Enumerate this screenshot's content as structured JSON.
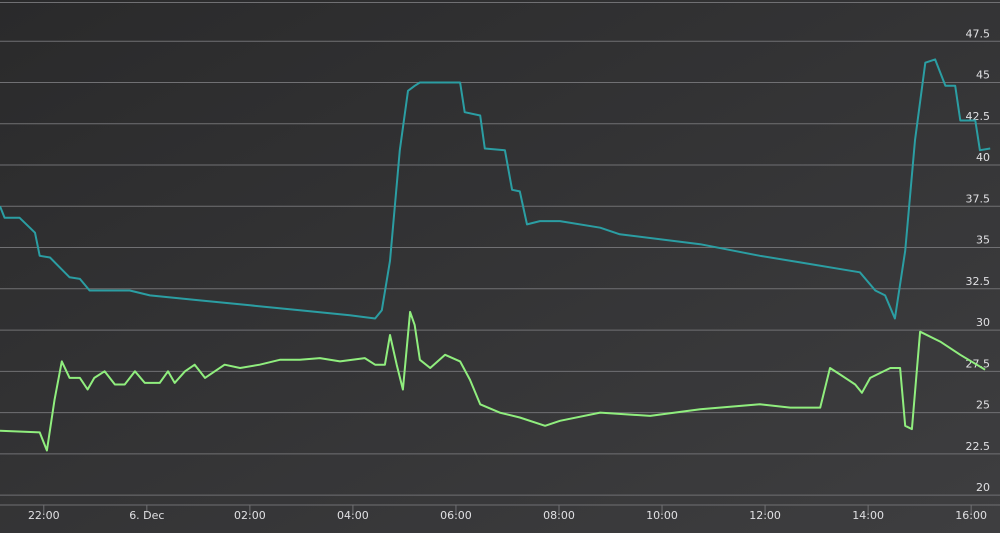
{
  "chart_data": {
    "type": "line",
    "xlim": [
      21.15,
      40.56
    ],
    "xticks": [
      {
        "value": 22,
        "label": "22:00"
      },
      {
        "value": 24,
        "label": "6. Dec"
      },
      {
        "value": 26,
        "label": "02:00"
      },
      {
        "value": 28,
        "label": "04:00"
      },
      {
        "value": 30,
        "label": "06:00"
      },
      {
        "value": 32,
        "label": "08:00"
      },
      {
        "value": 34,
        "label": "10:00"
      },
      {
        "value": 36,
        "label": "12:00"
      },
      {
        "value": 38,
        "label": "14:00"
      },
      {
        "value": 40,
        "label": "16:00"
      }
    ],
    "ylim": [
      19.4,
      50
    ],
    "yticks": [
      20,
      22.5,
      25,
      27.5,
      30,
      32.5,
      35,
      37.5,
      40,
      42.5,
      45,
      47.5
    ],
    "grid": true,
    "series": [
      {
        "color": "#2b9ea3",
        "x": [
          21.15,
          21.24,
          21.53,
          21.83,
          21.92,
          22.12,
          22.31,
          22.5,
          22.7,
          22.89,
          23.09,
          23.67,
          24.06,
          25.03,
          26.0,
          26.97,
          27.94,
          28.43,
          28.56,
          28.72,
          28.91,
          29.07,
          29.2,
          29.3,
          29.69,
          30.08,
          30.17,
          30.47,
          30.56,
          30.95,
          31.09,
          31.24,
          31.38,
          31.63,
          32.02,
          32.8,
          33.18,
          34.74,
          35.9,
          36.68,
          37.84,
          38.14,
          38.33,
          38.52,
          38.72,
          38.91,
          39.11,
          39.3,
          39.5,
          39.69,
          39.79,
          40.08,
          40.17,
          40.37
        ],
        "values": [
          37.5,
          36.8,
          36.8,
          35.9,
          34.5,
          34.4,
          33.8,
          33.2,
          33.1,
          32.4,
          32.4,
          32.4,
          32.1,
          31.8,
          31.5,
          31.2,
          30.9,
          30.7,
          31.2,
          34.2,
          40.9,
          44.5,
          44.8,
          45.0,
          45.0,
          45.0,
          43.2,
          43.0,
          41.0,
          40.9,
          38.5,
          38.4,
          36.4,
          36.6,
          36.6,
          36.2,
          35.8,
          35.2,
          34.5,
          34.1,
          33.5,
          32.4,
          32.1,
          30.7,
          34.8,
          41.5,
          46.2,
          46.4,
          44.8,
          44.8,
          42.7,
          42.7,
          40.9,
          41.0
        ]
      },
      {
        "color": "#90ee7e",
        "x": [
          21.15,
          21.92,
          22.06,
          22.21,
          22.35,
          22.5,
          22.7,
          22.85,
          22.98,
          23.18,
          23.38,
          23.57,
          23.77,
          23.96,
          24.25,
          24.41,
          24.54,
          24.74,
          24.93,
          25.13,
          25.32,
          25.51,
          25.81,
          26.19,
          26.58,
          26.97,
          27.36,
          27.75,
          28.23,
          28.43,
          28.62,
          28.72,
          28.85,
          28.97,
          29.11,
          29.2,
          29.3,
          29.5,
          29.79,
          30.08,
          30.27,
          30.47,
          30.85,
          31.24,
          31.73,
          32.02,
          32.8,
          33.77,
          34.74,
          35.9,
          36.49,
          37.07,
          37.26,
          37.46,
          37.75,
          37.88,
          38.04,
          38.43,
          38.62,
          38.72,
          38.85,
          39.01,
          39.4,
          39.79,
          40.27
        ],
        "values": [
          23.9,
          23.8,
          22.7,
          25.8,
          28.1,
          27.1,
          27.1,
          26.4,
          27.1,
          27.5,
          26.7,
          26.7,
          27.5,
          26.8,
          26.8,
          27.5,
          26.8,
          27.5,
          27.9,
          27.1,
          27.5,
          27.9,
          27.7,
          27.9,
          28.2,
          28.2,
          28.3,
          28.1,
          28.3,
          27.9,
          27.9,
          29.7,
          27.9,
          26.4,
          31.1,
          30.3,
          28.2,
          27.7,
          28.5,
          28.1,
          27.0,
          25.5,
          25.0,
          24.7,
          24.2,
          24.5,
          25.0,
          24.8,
          25.2,
          25.5,
          25.3,
          25.3,
          27.7,
          27.3,
          26.7,
          26.2,
          27.1,
          27.7,
          27.7,
          24.2,
          24.0,
          29.9,
          29.3,
          28.5,
          27.6
        ]
      }
    ]
  }
}
